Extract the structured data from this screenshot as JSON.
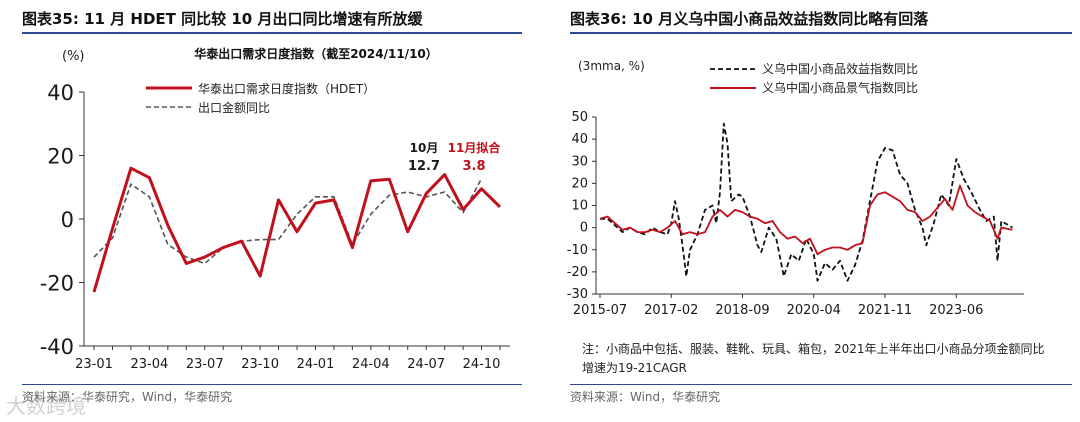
{
  "left": {
    "fig_title": "图表35:   11 月 HDET 同比较 10 月出口同比增速有所放缓",
    "source": "资料来源：华泰研究，Wind，华泰研究",
    "watermark": "大数跨境"
  },
  "right": {
    "fig_title": "图表36:   10 月义乌中国小商品效益指数同比略有回落",
    "note": "注：小商品中包括、服装、鞋靴、玩具、箱包，2021年上半年出口小商品分项金额同比增速为19-21CAGR",
    "source": "资料来源：Wind，华泰研究"
  },
  "chart_data": [
    {
      "type": "line",
      "title": "华泰出口需求日度指数（截至2024/11/10）",
      "unit_label": "(%)",
      "ylim": [
        -40,
        40
      ],
      "yticks": [
        "40",
        "20",
        "0",
        "-20",
        "-40"
      ],
      "ytick_values": [
        40,
        20,
        0,
        -20,
        -40
      ],
      "x": [
        "23-01",
        "23-02",
        "23-03",
        "23-04",
        "23-05",
        "23-06",
        "23-07",
        "23-08",
        "23-09",
        "23-10",
        "23-11",
        "23-12",
        "24-01",
        "24-02",
        "24-03",
        "24-04",
        "24-05",
        "24-06",
        "24-07",
        "24-08",
        "24-09",
        "24-10",
        "24-11"
      ],
      "xtick_labels": [
        "23-01",
        "23-04",
        "23-07",
        "23-10",
        "24-01",
        "24-04",
        "24-07",
        "24-10"
      ],
      "xtick_index": [
        0,
        3,
        6,
        9,
        12,
        15,
        18,
        21
      ],
      "legend_position": "top-left",
      "series": [
        {
          "name": "华泰出口需求日度指数（HDET）",
          "color": "#c0101c",
          "style": "solid",
          "values": [
            -23,
            -3,
            16,
            13,
            -2,
            -14,
            -12,
            -9,
            -7,
            -18,
            6,
            -4,
            5,
            6,
            -9,
            12,
            12.5,
            -4,
            8,
            14,
            3,
            9.5,
            3.8
          ]
        },
        {
          "name": "出口金额同比",
          "color": "#555555",
          "style": "dashed",
          "values": [
            -12,
            -6,
            11,
            7,
            -8,
            -12,
            -14,
            -9,
            -7,
            -6.5,
            -6.5,
            1.5,
            7,
            7,
            -8,
            1.5,
            7.5,
            8.5,
            7,
            8.5,
            2,
            12.7,
            null
          ]
        }
      ],
      "annotations": [
        {
          "label": "10月",
          "value": "12.7",
          "color": "#1a1a1a"
        },
        {
          "label": "11月拟合",
          "value": "3.8",
          "color": "#c0101c"
        }
      ]
    },
    {
      "type": "line",
      "unit_label": "(3mma, %)",
      "ylim": [
        -30,
        50
      ],
      "yticks": [
        "50",
        "40",
        "30",
        "20",
        "10",
        "0",
        "-10",
        "-20",
        "-30"
      ],
      "ytick_values": [
        50,
        40,
        30,
        20,
        10,
        0,
        -10,
        -20,
        -30
      ],
      "x_start": "2015-07",
      "x_end": "2024-10",
      "xtick_labels": [
        "2015-07",
        "2017-02",
        "2018-09",
        "2020-04",
        "2021-11",
        "2023-06"
      ],
      "xtick_months": [
        0,
        19,
        38,
        57,
        76,
        95
      ],
      "legend_position": "top-left",
      "series": [
        {
          "name": "义乌中国小商品效益指数同比",
          "color": "#111111",
          "style": "dashed",
          "values": [
            [
              0,
              4
            ],
            [
              2,
              4
            ],
            [
              4,
              1
            ],
            [
              6,
              -2
            ],
            [
              8,
              0
            ],
            [
              10,
              -2
            ],
            [
              12,
              -3
            ],
            [
              14,
              0
            ],
            [
              16,
              -2
            ],
            [
              18,
              -3
            ],
            [
              19,
              2
            ],
            [
              20,
              12
            ],
            [
              21,
              4
            ],
            [
              22,
              -8
            ],
            [
              23,
              -22
            ],
            [
              24,
              -10
            ],
            [
              26,
              -3
            ],
            [
              28,
              8
            ],
            [
              30,
              10
            ],
            [
              31,
              2
            ],
            [
              32,
              16
            ],
            [
              33,
              47
            ],
            [
              34,
              38
            ],
            [
              35,
              12
            ],
            [
              37,
              15
            ],
            [
              38,
              14
            ],
            [
              40,
              5
            ],
            [
              42,
              -8
            ],
            [
              43,
              -11
            ],
            [
              45,
              0
            ],
            [
              47,
              -5
            ],
            [
              49,
              -22
            ],
            [
              51,
              -12
            ],
            [
              53,
              -15
            ],
            [
              55,
              -5
            ],
            [
              57,
              -12
            ],
            [
              58,
              -24
            ],
            [
              60,
              -16
            ],
            [
              62,
              -19
            ],
            [
              64,
              -15
            ],
            [
              66,
              -24
            ],
            [
              68,
              -17
            ],
            [
              70,
              -6
            ],
            [
              72,
              12
            ],
            [
              74,
              30
            ],
            [
              76,
              36
            ],
            [
              78,
              35
            ],
            [
              80,
              24
            ],
            [
              82,
              20
            ],
            [
              84,
              8
            ],
            [
              86,
              0
            ],
            [
              87,
              -8
            ],
            [
              89,
              2
            ],
            [
              91,
              15
            ],
            [
              93,
              10
            ],
            [
              95,
              31
            ],
            [
              97,
              22
            ],
            [
              99,
              16
            ],
            [
              101,
              9
            ],
            [
              103,
              3
            ],
            [
              105,
              5
            ],
            [
              106,
              -15
            ],
            [
              107,
              3
            ],
            [
              110,
              0
            ]
          ]
        },
        {
          "name": "义乌中国小商品景气指数同比",
          "color": "#c0101c",
          "style": "solid",
          "values": [
            [
              0,
              4
            ],
            [
              2,
              5
            ],
            [
              4,
              2
            ],
            [
              6,
              -1
            ],
            [
              8,
              0
            ],
            [
              10,
              -2
            ],
            [
              12,
              -2
            ],
            [
              14,
              -1
            ],
            [
              16,
              -2
            ],
            [
              18,
              0
            ],
            [
              20,
              3
            ],
            [
              22,
              -3
            ],
            [
              24,
              -2
            ],
            [
              26,
              -3
            ],
            [
              28,
              -2
            ],
            [
              30,
              5
            ],
            [
              32,
              8
            ],
            [
              34,
              5
            ],
            [
              36,
              8
            ],
            [
              38,
              7
            ],
            [
              40,
              5
            ],
            [
              42,
              4
            ],
            [
              44,
              2
            ],
            [
              46,
              3
            ],
            [
              48,
              -2
            ],
            [
              50,
              -5
            ],
            [
              52,
              -4
            ],
            [
              54,
              -7
            ],
            [
              56,
              -5
            ],
            [
              58,
              -12
            ],
            [
              60,
              -10
            ],
            [
              62,
              -9
            ],
            [
              64,
              -9
            ],
            [
              66,
              -10
            ],
            [
              68,
              -8
            ],
            [
              70,
              -7
            ],
            [
              72,
              10
            ],
            [
              74,
              15
            ],
            [
              76,
              16
            ],
            [
              78,
              14
            ],
            [
              80,
              12
            ],
            [
              82,
              8
            ],
            [
              84,
              7
            ],
            [
              86,
              3
            ],
            [
              88,
              5
            ],
            [
              90,
              9
            ],
            [
              92,
              13
            ],
            [
              94,
              8
            ],
            [
              96,
              19
            ],
            [
              98,
              10
            ],
            [
              100,
              7
            ],
            [
              102,
              5
            ],
            [
              104,
              3
            ],
            [
              106,
              -5
            ],
            [
              107,
              0
            ],
            [
              110,
              -1
            ]
          ]
        }
      ]
    }
  ]
}
